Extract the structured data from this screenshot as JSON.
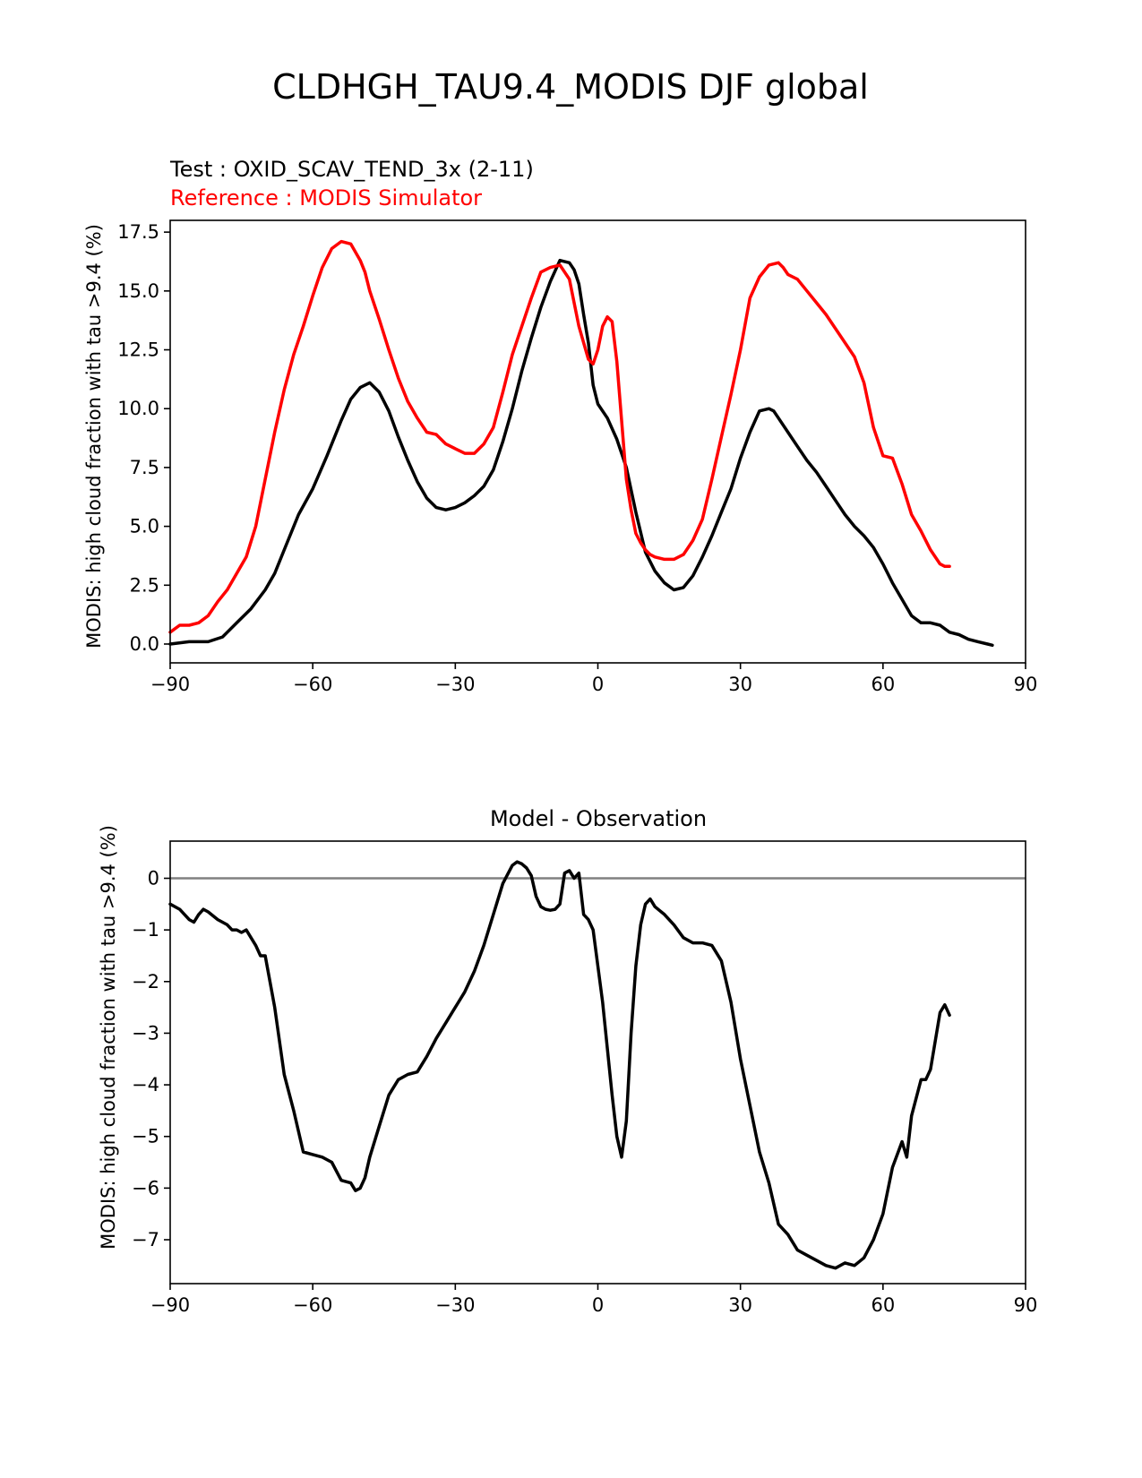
{
  "figure": {
    "title": "CLDHGH_TAU9.4_MODIS DJF global"
  },
  "chart_data": [
    {
      "type": "line",
      "test_label": "Test : OXID_SCAV_TEND_3x (2-11)",
      "reference_label": "Reference : MODIS Simulator",
      "title": "",
      "xlabel": "",
      "ylabel": "MODIS: high cloud fraction with tau >9.4 (%)",
      "xlim": [
        -90,
        90
      ],
      "ylim": [
        -0.8,
        18.0
      ],
      "xticks": [
        -90,
        -60,
        -30,
        0,
        30,
        60,
        90
      ],
      "xtick_labels": [
        "−90",
        "−60",
        "−30",
        "0",
        "30",
        "60",
        "90"
      ],
      "yticks": [
        0.0,
        2.5,
        5.0,
        7.5,
        10.0,
        12.5,
        15.0,
        17.5
      ],
      "ytick_labels": [
        "0.0",
        "2.5",
        "5.0",
        "7.5",
        "10.0",
        "12.5",
        "15.0",
        "17.5"
      ],
      "grid": false,
      "series": [
        {
          "color": "#000000",
          "x": [
            -90,
            -86,
            -82,
            -79,
            -76,
            -73,
            -70,
            -68,
            -66,
            -63,
            -60,
            -57,
            -54,
            -52,
            -50,
            -48,
            -46,
            -44,
            -42,
            -40,
            -38,
            -36,
            -34,
            -32,
            -30,
            -28,
            -26,
            -24,
            -22,
            -20,
            -18,
            -16,
            -14,
            -12,
            -10,
            -8,
            -6,
            -5,
            -4,
            -3,
            -2,
            -1,
            0,
            2,
            4,
            6,
            8,
            10,
            12,
            14,
            16,
            18,
            20,
            22,
            24,
            26,
            28,
            30,
            32,
            34,
            36,
            37,
            38,
            40,
            42,
            44,
            46,
            48,
            50,
            52,
            54,
            56,
            58,
            60,
            62,
            64,
            66,
            68,
            70,
            72,
            74,
            76,
            78,
            80,
            82,
            83
          ],
          "y": [
            0.0,
            0.1,
            0.1,
            0.3,
            0.9,
            1.5,
            2.3,
            3.0,
            4.0,
            5.5,
            6.6,
            8.0,
            9.5,
            10.4,
            10.9,
            11.1,
            10.7,
            9.9,
            8.8,
            7.8,
            6.9,
            6.2,
            5.8,
            5.7,
            5.8,
            6.0,
            6.3,
            6.7,
            7.4,
            8.6,
            10.0,
            11.6,
            13.0,
            14.3,
            15.4,
            16.3,
            16.2,
            15.9,
            15.3,
            14.0,
            12.8,
            11.0,
            10.2,
            9.6,
            8.7,
            7.5,
            5.6,
            3.9,
            3.1,
            2.6,
            2.3,
            2.4,
            2.9,
            3.7,
            4.6,
            5.6,
            6.6,
            7.9,
            9.0,
            9.9,
            10.0,
            9.9,
            9.6,
            9.0,
            8.4,
            7.8,
            7.3,
            6.7,
            6.1,
            5.5,
            5.0,
            4.6,
            4.1,
            3.4,
            2.6,
            1.9,
            1.2,
            0.9,
            0.9,
            0.8,
            0.5,
            0.4,
            0.2,
            0.1,
            0.0,
            -0.05
          ]
        },
        {
          "color": "#ff0000",
          "x": [
            -90,
            -88,
            -86,
            -84,
            -82,
            -80,
            -78,
            -76,
            -74,
            -72,
            -70,
            -68,
            -66,
            -64,
            -62,
            -60,
            -58,
            -56,
            -54,
            -52,
            -50,
            -49,
            -48,
            -46,
            -44,
            -42,
            -40,
            -38,
            -36,
            -34,
            -32,
            -30,
            -28,
            -26,
            -24,
            -22,
            -20,
            -18,
            -16,
            -14,
            -12,
            -10,
            -8,
            -6,
            -5,
            -4,
            -3,
            -2,
            -1,
            0,
            1,
            2,
            3,
            4,
            5,
            6,
            7,
            8,
            9,
            10,
            11,
            12,
            14,
            16,
            18,
            20,
            22,
            24,
            26,
            28,
            30,
            32,
            34,
            36,
            38,
            39,
            40,
            42,
            44,
            46,
            48,
            50,
            52,
            54,
            56,
            58,
            60,
            62,
            64,
            66,
            68,
            70,
            72,
            73,
            74
          ],
          "y": [
            0.5,
            0.8,
            0.8,
            0.9,
            1.2,
            1.8,
            2.3,
            3.0,
            3.7,
            5.0,
            7.0,
            9.0,
            10.8,
            12.3,
            13.5,
            14.8,
            16.0,
            16.8,
            17.1,
            17.0,
            16.3,
            15.8,
            15.0,
            13.8,
            12.5,
            11.3,
            10.3,
            9.6,
            9.0,
            8.9,
            8.5,
            8.3,
            8.1,
            8.1,
            8.5,
            9.2,
            10.7,
            12.3,
            13.5,
            14.7,
            15.8,
            16.0,
            16.1,
            15.5,
            14.5,
            13.5,
            12.8,
            12.1,
            11.9,
            12.5,
            13.5,
            13.9,
            13.7,
            12.0,
            9.5,
            7.0,
            5.7,
            4.7,
            4.3,
            4.0,
            3.8,
            3.7,
            3.6,
            3.6,
            3.8,
            4.4,
            5.3,
            7.0,
            8.8,
            10.6,
            12.5,
            14.7,
            15.6,
            16.1,
            16.2,
            16.0,
            15.7,
            15.5,
            15.0,
            14.5,
            14.0,
            13.4,
            12.8,
            12.2,
            11.1,
            9.2,
            8.0,
            7.9,
            6.8,
            5.5,
            4.8,
            4.0,
            3.4,
            3.3,
            3.3
          ]
        }
      ]
    },
    {
      "type": "line",
      "title": "Model - Observation",
      "xlabel": "",
      "ylabel": "MODIS: high cloud fraction with tau >9.4 (%)",
      "xlim": [
        -90,
        90
      ],
      "ylim": [
        -7.85,
        0.72
      ],
      "xticks": [
        -90,
        -60,
        -30,
        0,
        30,
        60,
        90
      ],
      "xtick_labels": [
        "−90",
        "−60",
        "−30",
        "0",
        "30",
        "60",
        "90"
      ],
      "yticks": [
        0,
        -1,
        -2,
        -3,
        -4,
        -5,
        -6,
        -7
      ],
      "ytick_labels": [
        "0",
        "−1",
        "−2",
        "−3",
        "−4",
        "−5",
        "−6",
        "−7"
      ],
      "grid": false,
      "zero_line": true,
      "zero_line_color": "#808080",
      "series": [
        {
          "color": "#000000",
          "x": [
            -90,
            -88,
            -86,
            -85,
            -84,
            -83,
            -82,
            -80,
            -78,
            -77,
            -76,
            -75,
            -74,
            -72,
            -71,
            -70,
            -68,
            -66,
            -64,
            -62,
            -60,
            -58,
            -56,
            -54,
            -52,
            -51,
            -50,
            -49,
            -48,
            -46,
            -44,
            -42,
            -40,
            -38,
            -36,
            -34,
            -32,
            -30,
            -28,
            -26,
            -24,
            -22,
            -20,
            -18,
            -17,
            -16,
            -15,
            -14,
            -13,
            -12,
            -11,
            -10,
            -9,
            -8,
            -7,
            -6,
            -5,
            -4,
            -3,
            -2,
            -1,
            0,
            1,
            2,
            3,
            4,
            5,
            6,
            7,
            8,
            9,
            10,
            11,
            12,
            14,
            16,
            18,
            20,
            22,
            24,
            26,
            28,
            30,
            32,
            34,
            36,
            38,
            40,
            42,
            44,
            46,
            48,
            50,
            52,
            54,
            56,
            58,
            60,
            62,
            64,
            65,
            66,
            68,
            69,
            70,
            72,
            73,
            74
          ],
          "y": [
            -0.5,
            -0.6,
            -0.8,
            -0.85,
            -0.7,
            -0.6,
            -0.65,
            -0.8,
            -0.9,
            -1.0,
            -1.0,
            -1.05,
            -1.0,
            -1.3,
            -1.5,
            -1.5,
            -2.5,
            -3.8,
            -4.5,
            -5.3,
            -5.35,
            -5.4,
            -5.5,
            -5.85,
            -5.9,
            -6.05,
            -6.0,
            -5.8,
            -5.4,
            -4.8,
            -4.2,
            -3.9,
            -3.8,
            -3.75,
            -3.45,
            -3.1,
            -2.8,
            -2.5,
            -2.2,
            -1.8,
            -1.3,
            -0.7,
            -0.1,
            0.25,
            0.32,
            0.28,
            0.2,
            0.05,
            -0.35,
            -0.55,
            -0.6,
            -0.62,
            -0.6,
            -0.5,
            0.1,
            0.15,
            0.0,
            0.1,
            -0.7,
            -0.8,
            -1.0,
            -1.7,
            -2.4,
            -3.3,
            -4.2,
            -5.0,
            -5.4,
            -4.7,
            -3.0,
            -1.7,
            -0.9,
            -0.5,
            -0.4,
            -0.55,
            -0.7,
            -0.9,
            -1.15,
            -1.25,
            -1.25,
            -1.3,
            -1.6,
            -2.4,
            -3.5,
            -4.4,
            -5.3,
            -5.9,
            -6.7,
            -6.9,
            -7.2,
            -7.3,
            -7.4,
            -7.5,
            -7.55,
            -7.45,
            -7.5,
            -7.35,
            -7.0,
            -6.5,
            -5.6,
            -5.1,
            -5.4,
            -4.6,
            -3.9,
            -3.9,
            -3.7,
            -2.6,
            -2.45,
            -2.65
          ]
        }
      ]
    }
  ]
}
